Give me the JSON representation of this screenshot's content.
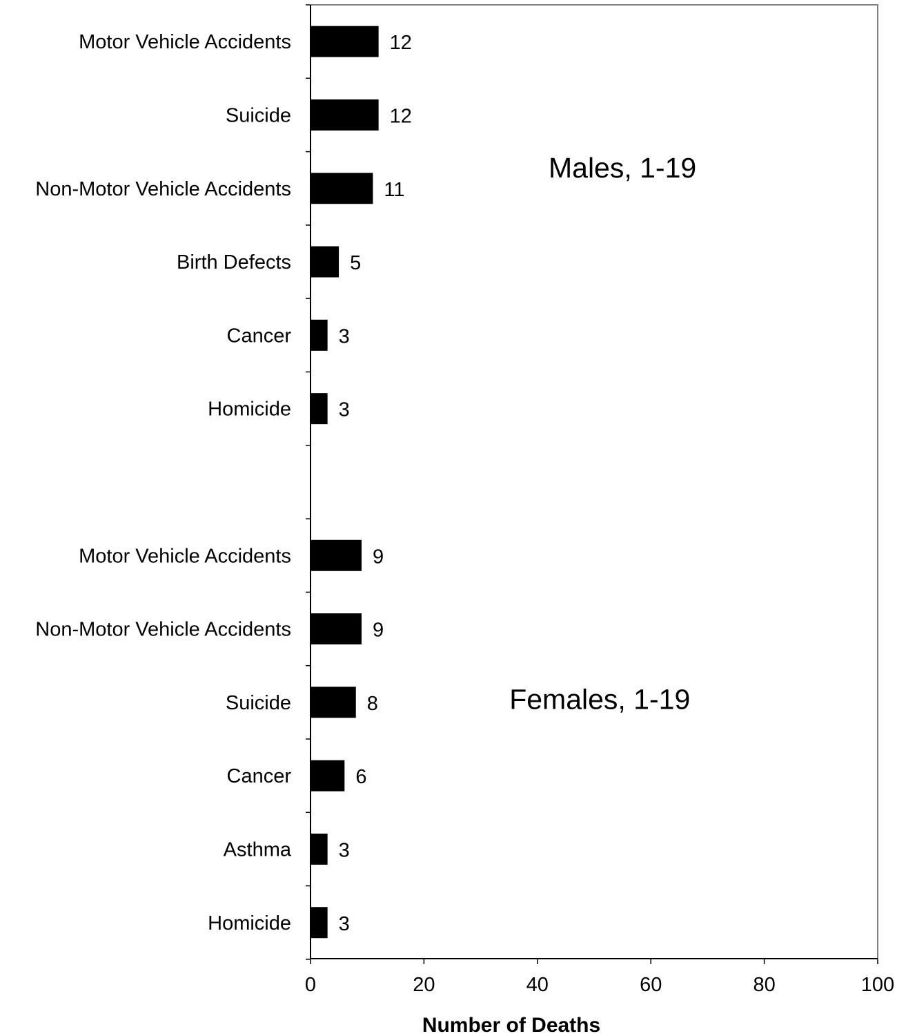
{
  "chart_data": {
    "type": "bar",
    "orientation": "horizontal",
    "xlabel": "Number of Deaths",
    "ylabel": "",
    "xlim": [
      0,
      100
    ],
    "x_ticks": [
      "0",
      "20",
      "40",
      "60",
      "80",
      "100"
    ],
    "grid": false,
    "bar_color": "#000000",
    "groups": [
      {
        "label": "Males, 1-19",
        "categories": [
          "Motor Vehicle Accidents",
          "Suicide",
          "Non-Motor Vehicle Accidents",
          "Birth Defects",
          "Cancer",
          "Homicide"
        ],
        "values": [
          12,
          12,
          11,
          5,
          3,
          3
        ]
      },
      {
        "label": "Females, 1-19",
        "categories": [
          "Motor Vehicle Accidents",
          "Non-Motor Vehicle Accidents",
          "Suicide",
          "Cancer",
          "Asthma",
          "Homicide"
        ],
        "values": [
          9,
          9,
          8,
          6,
          3,
          3
        ]
      }
    ]
  }
}
